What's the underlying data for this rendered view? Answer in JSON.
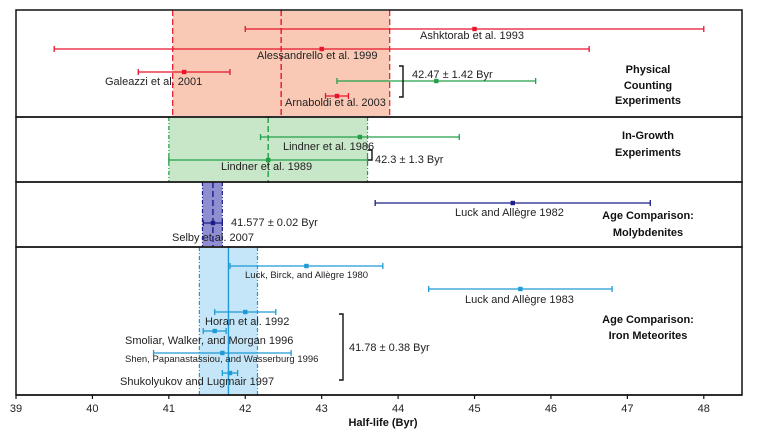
{
  "chart_data": {
    "type": "scatter",
    "title": "",
    "xlabel": "Half-life (Byr)",
    "ylabel": "",
    "xlim": [
      39,
      48.5
    ],
    "xticks": [
      39,
      40,
      41,
      42,
      43,
      44,
      45,
      46,
      47,
      48
    ],
    "grid": false,
    "legend": "none",
    "sections": [
      {
        "name": "Physical Counting Experiments",
        "label_lines": [
          "Physical",
          "Counting",
          "Experiments"
        ],
        "band_color": "#f9c9b5",
        "line_color": "#e8142c",
        "band": {
          "low": 41.05,
          "high": 43.89,
          "center": 42.47
        },
        "summary": {
          "text": "42.47 ± 1.42 Byr",
          "low": 41.05,
          "high": 43.89,
          "value": 42.47
        },
        "measurements": [
          {
            "label": "Ashktorab et al. 1993",
            "value": 45.0,
            "low": 42.0,
            "high": 48.0,
            "color": "#e8142c"
          },
          {
            "label": "Alessandrello et al. 1999",
            "value": 43.0,
            "low": 39.5,
            "high": 46.5,
            "color": "#e8142c"
          },
          {
            "label": "Galeazzi et al. 2001",
            "value": 41.2,
            "low": 40.6,
            "high": 41.8,
            "color": "#e8142c"
          },
          {
            "label": "",
            "value": 44.5,
            "low": 43.2,
            "high": 45.8,
            "color": "#22a048"
          },
          {
            "label": "Arnaboldi et al. 2003",
            "value": 43.2,
            "low": 43.05,
            "high": 43.35,
            "color": "#e8142c"
          }
        ]
      },
      {
        "name": "In-Growth Experiments",
        "label_lines": [
          "In-Growth",
          "Experiments"
        ],
        "band_color": "#c8e6c8",
        "line_color": "#22a048",
        "band": {
          "low": 41.0,
          "high": 43.6,
          "center": 42.3
        },
        "summary": {
          "text": "42.3 ± 1.3 Byr",
          "low": 41.0,
          "high": 43.6,
          "value": 42.3
        },
        "measurements": [
          {
            "label": "Lindner et al. 1986",
            "value": 43.5,
            "low": 42.2,
            "high": 44.8,
            "color": "#22a048"
          },
          {
            "label": "Lindner et al. 1989",
            "value": 42.3,
            "low": 41.0,
            "high": 43.6,
            "color": "#22a048"
          }
        ]
      },
      {
        "name": "Age Comparison: Molybdenites",
        "label_lines": [
          "Age Comparison:",
          "Molybdenites"
        ],
        "band_color": "#8e8ed0",
        "line_color": "#1c1c8a",
        "band": {
          "low": 41.44,
          "high": 41.7,
          "center": 41.577
        },
        "summary": {
          "text": "41.577 ± 0.02 Byr",
          "low": 41.557,
          "high": 41.597,
          "value": 41.577
        },
        "measurements": [
          {
            "label": "Luck and Allègre 1982",
            "value": 45.5,
            "low": 43.7,
            "high": 47.3,
            "color": "#1c1c8a"
          },
          {
            "label": "Selby et al. 2007",
            "value": 41.577,
            "low": 41.45,
            "high": 41.7,
            "color": "#1c1c8a"
          }
        ]
      },
      {
        "name": "Age Comparison: Iron Meteorites",
        "label_lines": [
          "Age Comparison:",
          "Iron Meteorites"
        ],
        "band_color": "#c4e6f8",
        "line_color": "#1e9ad6",
        "band": {
          "low": 41.4,
          "high": 42.16,
          "center": 41.78
        },
        "summary": {
          "text": "41.78 ± 0.38 Byr",
          "low": 41.4,
          "high": 42.16,
          "value": 41.78
        },
        "measurements": [
          {
            "label": "Luck, Birck,  and Allègre 1980",
            "value": 42.8,
            "low": 41.8,
            "high": 43.8,
            "color": "#1e9ad6"
          },
          {
            "label": "Luck and Allègre 1983",
            "value": 45.6,
            "low": 44.4,
            "high": 46.8,
            "color": "#1e9ad6"
          },
          {
            "label": "Horan et al. 1992",
            "value": 42.0,
            "low": 41.6,
            "high": 42.4,
            "color": "#1e9ad6"
          },
          {
            "label": "Smoliar, Walker, and Morgan 1996",
            "value": 41.6,
            "low": 41.45,
            "high": 41.75,
            "color": "#1e9ad6"
          },
          {
            "label": "Shen, Papanastassiou, and Wasserburg 1996",
            "value": 41.7,
            "low": 40.8,
            "high": 42.6,
            "color": "#1e9ad6"
          },
          {
            "label": "Shukolyukov and Lugmair 1997",
            "value": 41.8,
            "low": 41.7,
            "high": 41.9,
            "color": "#1e9ad6"
          }
        ]
      }
    ]
  }
}
